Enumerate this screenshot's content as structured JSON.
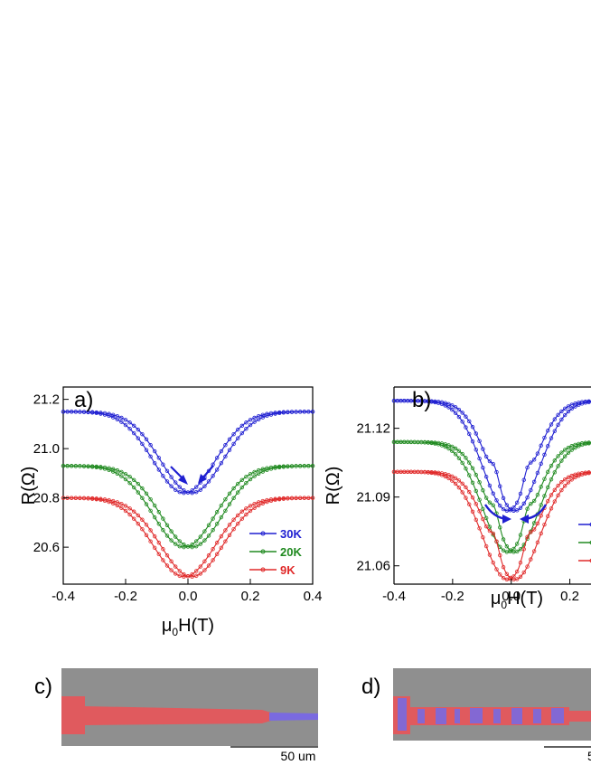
{
  "panels": {
    "a": {
      "label": "a)",
      "xlabel_mu": "μ",
      "xlabel_sub": "0",
      "xlabel_rest": "H(T)",
      "ylabel": "R(Ω)"
    },
    "b": {
      "label": "b)",
      "xlabel_mu": "μ",
      "xlabel_sub": "0",
      "xlabel_rest": "H(T)",
      "ylabel": "R(Ω)"
    },
    "c": {
      "label": "c)",
      "scale_bar": "50 um"
    },
    "d": {
      "label": "d)",
      "scale_bar": "5"
    }
  },
  "colors": {
    "blue": "#1f1fd1",
    "green": "#208a20",
    "red": "#e02a2a",
    "sem_gray": "#8f8f8f",
    "wire_red": "#e05a5e",
    "wire_blue": "#7a6ae0"
  },
  "chart_data": [
    {
      "type": "line",
      "panel": "a",
      "xlabel": "μ0H(T)",
      "ylabel": "R(Ω)",
      "xlim": [
        -0.4,
        0.4
      ],
      "ylim": [
        20.45,
        21.25
      ],
      "xticks": [
        "-0.4",
        "-0.2",
        "0.0",
        "0.2",
        "0.4"
      ],
      "yticks": [
        "20.6",
        "20.8",
        "21.0",
        "21.2"
      ],
      "legend": "bottom-right",
      "series": [
        {
          "name": "30K",
          "color": "#1f1fd1",
          "r_max": 21.15,
          "r_min": 20.82,
          "x_min": 0.0
        },
        {
          "name": "20K",
          "color": "#208a20",
          "r_max": 20.93,
          "r_min": 20.6,
          "x_min": 0.0
        },
        {
          "name": "9K",
          "color": "#e02a2a",
          "r_max": 20.8,
          "r_min": 20.48,
          "x_min": 0.0
        }
      ]
    },
    {
      "type": "line",
      "panel": "b",
      "xlabel": "μ0H(T)",
      "ylabel": "R(Ω)",
      "xlim": [
        -0.4,
        0.3
      ],
      "ylim": [
        21.052,
        21.138
      ],
      "xticks": [
        "-0.4",
        "-0.2",
        "0.0",
        "0.2"
      ],
      "yticks": [
        "21.06",
        "21.09",
        "21.12"
      ],
      "legend": "bottom-right",
      "series": [
        {
          "color": "#1f1fd1",
          "r_max": 21.132,
          "r_min": 21.084
        },
        {
          "color": "#208a20",
          "r_max": 21.114,
          "r_min": 21.066
        },
        {
          "color": "#e02a2a",
          "r_max": 21.101,
          "r_min": 21.054
        }
      ]
    }
  ]
}
